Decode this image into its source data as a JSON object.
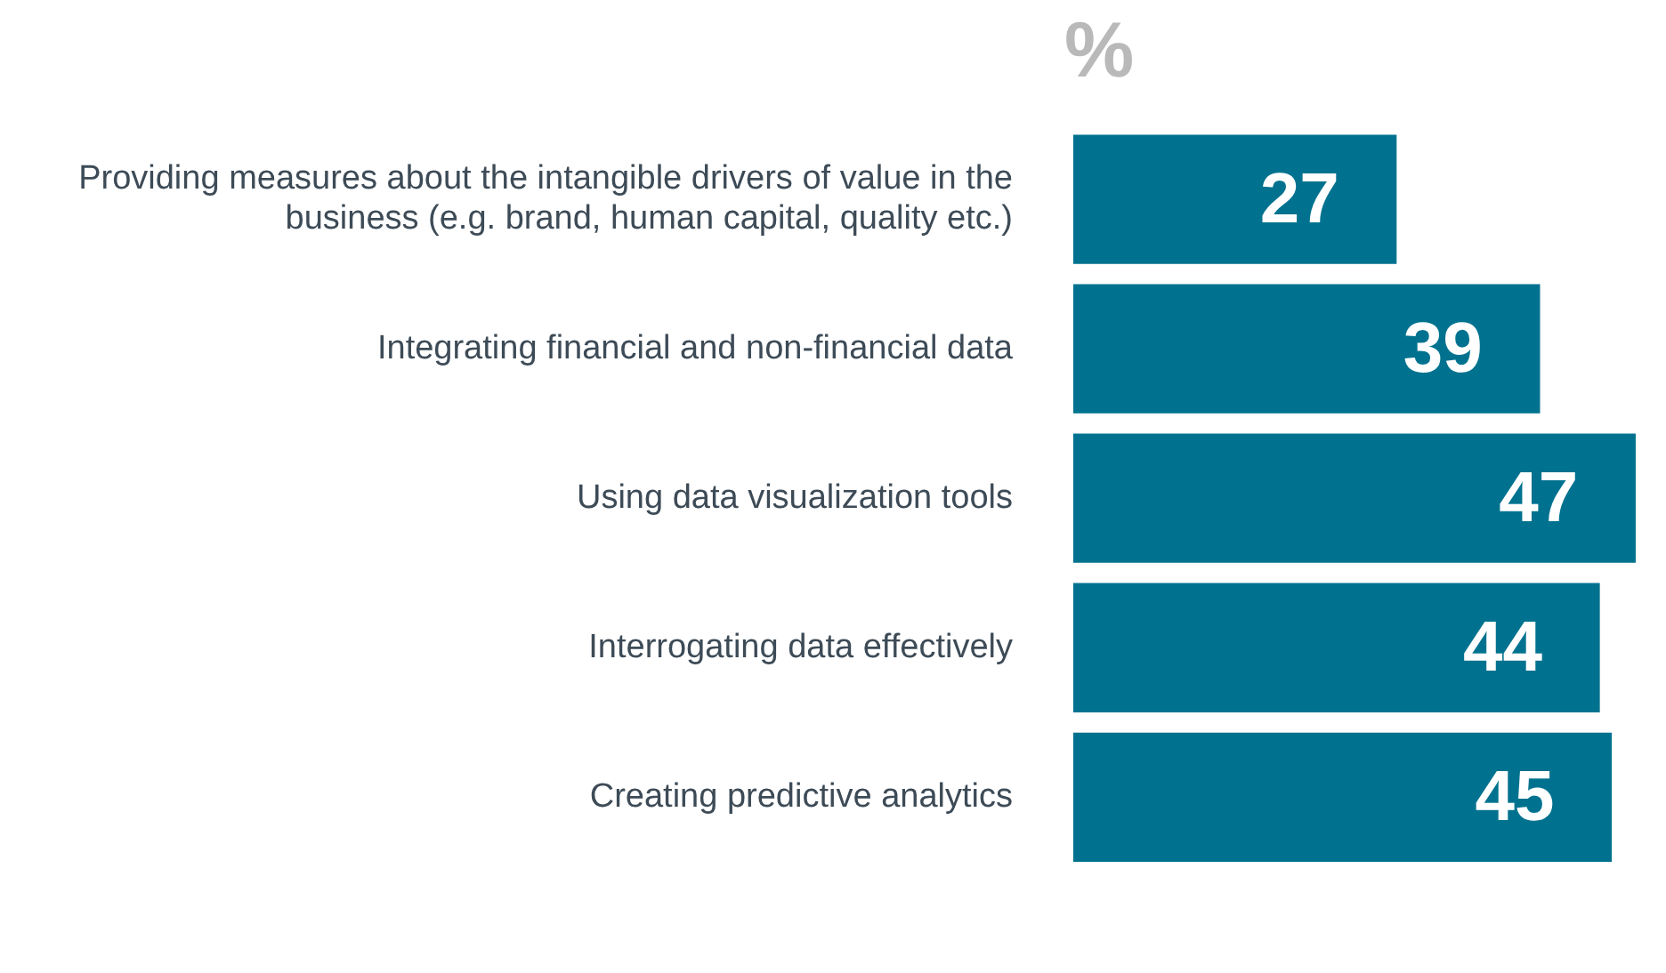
{
  "chart_data": {
    "type": "bar",
    "orientation": "horizontal",
    "title": "%",
    "categories": [
      "Providing measures about the intangible drivers of value in the business (e.g. brand, human capital, quality etc.)",
      "Integrating financial and non-financial data",
      "Using data visualization tools",
      "Interrogating data effectively",
      "Creating predictive analytics"
    ],
    "values": [
      27,
      39,
      47,
      44,
      45
    ],
    "color": "#00728f",
    "data_labels": true,
    "grid": false,
    "legend": false
  }
}
